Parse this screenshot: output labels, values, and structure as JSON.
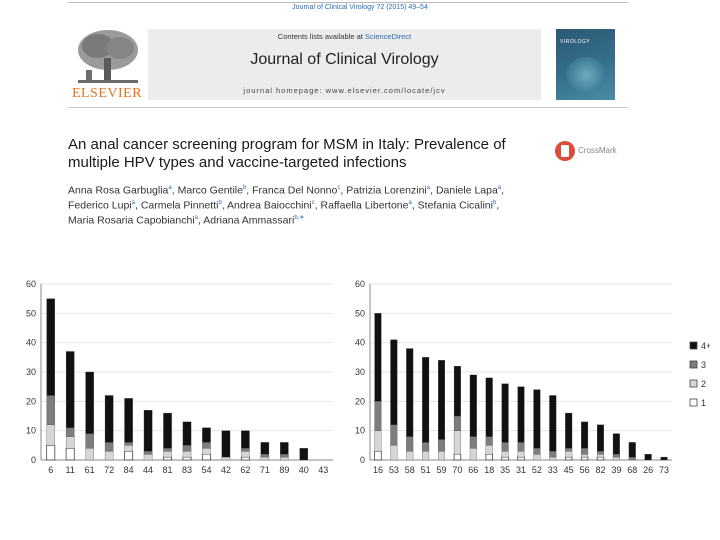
{
  "citation": "Journal of Clinical Virology 72 (2015) 49–54",
  "publisher": {
    "logo_text": "ELSEVIER"
  },
  "masthead": {
    "contents_prefix": "Contents lists available at ",
    "contents_link": "ScienceDirect",
    "journal_title": "Journal of Clinical Virology",
    "homepage": "journal homepage: www.elsevier.com/locate/jcv"
  },
  "cover": {
    "title": "VIROLOGY"
  },
  "article": {
    "title": "An anal cancer screening program for MSM in Italy: Prevalence of multiple HPV types and vaccine-targeted infections",
    "crossmark": "CrossMark",
    "authors": [
      {
        "name": "Anna Rosa Garbuglia",
        "aff": "a",
        "sep": ", "
      },
      {
        "name": "Marco Gentile",
        "aff": "b",
        "sep": ", "
      },
      {
        "name": "Franca Del Nonno",
        "aff": "c",
        "sep": ", "
      },
      {
        "name": "Patrizia Lorenzini",
        "aff": "a",
        "sep": ", "
      },
      {
        "name": "Daniele Lapa",
        "aff": "a",
        "sep": ", "
      },
      {
        "name": "Federico Lupi",
        "aff": "a",
        "sep": ", "
      },
      {
        "name": "Carmela Pinnetti",
        "aff": "b",
        "sep": ", "
      },
      {
        "name": "Andrea Baiocchini",
        "aff": "c",
        "sep": ", "
      },
      {
        "name": "Raffaella Libertone",
        "aff": "a",
        "sep": ", "
      },
      {
        "name": "Stefania Cicalini",
        "aff": "b",
        "sep": ", "
      },
      {
        "name": "Maria Rosaria Capobianchi",
        "aff": "a",
        "sep": ", "
      },
      {
        "name": "Adriana Ammassari",
        "aff": "b,∗",
        "sep": ""
      }
    ]
  },
  "colors": {
    "black": "#111111",
    "dark_gray": "#7d7d7d",
    "light_gray": "#d6d6d6",
    "white": "#ffffff",
    "grid": "#e4e4e4",
    "axis": "#888888"
  },
  "chart_data": [
    {
      "type": "bar",
      "stacked": true,
      "title": "",
      "xlabel": "",
      "ylabel": "",
      "ylim": [
        0,
        60
      ],
      "yticks": [
        0,
        10,
        20,
        30,
        40,
        50,
        60
      ],
      "grid": true,
      "categories": [
        "6",
        "11",
        "61",
        "72",
        "84",
        "44",
        "81",
        "83",
        "54",
        "42",
        "62",
        "71",
        "89",
        "40",
        "43"
      ],
      "series": [
        {
          "name": "1",
          "values": [
            5,
            4,
            0,
            0,
            3,
            0,
            1,
            1,
            2,
            0,
            1,
            0,
            0,
            0,
            0
          ]
        },
        {
          "name": "2",
          "values": [
            7,
            4,
            4,
            3,
            2,
            2,
            2,
            2,
            2,
            1,
            2,
            1,
            1,
            0,
            0
          ]
        },
        {
          "name": "3",
          "values": [
            10,
            3,
            5,
            3,
            1,
            1,
            1,
            2,
            2,
            0,
            1,
            1,
            1,
            0,
            0
          ]
        },
        {
          "name": "4+",
          "values": [
            33,
            26,
            21,
            16,
            15,
            14,
            12,
            8,
            5,
            9,
            6,
            4,
            4,
            4,
            0
          ]
        }
      ]
    },
    {
      "type": "bar",
      "stacked": true,
      "title": "",
      "xlabel": "",
      "ylabel": "",
      "ylim": [
        0,
        60
      ],
      "yticks": [
        0,
        10,
        20,
        30,
        40,
        50,
        60
      ],
      "grid": true,
      "legend": "right",
      "categories": [
        "16",
        "53",
        "58",
        "51",
        "59",
        "70",
        "66",
        "18",
        "35",
        "31",
        "52",
        "33",
        "45",
        "56",
        "82",
        "39",
        "68",
        "26",
        "73"
      ],
      "series": [
        {
          "name": "1",
          "values": [
            3,
            0,
            0,
            0,
            0,
            2,
            0,
            2,
            1,
            1,
            0,
            0,
            1,
            1,
            1,
            0,
            0,
            0,
            0
          ]
        },
        {
          "name": "2",
          "values": [
            7,
            5,
            3,
            3,
            3,
            8,
            4,
            3,
            2,
            2,
            2,
            1,
            2,
            1,
            1,
            1,
            0,
            0,
            0
          ]
        },
        {
          "name": "3",
          "values": [
            10,
            7,
            5,
            3,
            4,
            5,
            4,
            3,
            3,
            3,
            2,
            2,
            1,
            2,
            1,
            1,
            1,
            0,
            0
          ]
        },
        {
          "name": "4+",
          "values": [
            30,
            29,
            30,
            29,
            27,
            17,
            21,
            20,
            20,
            19,
            20,
            19,
            12,
            9,
            9,
            7,
            5,
            2,
            1
          ]
        }
      ]
    }
  ]
}
